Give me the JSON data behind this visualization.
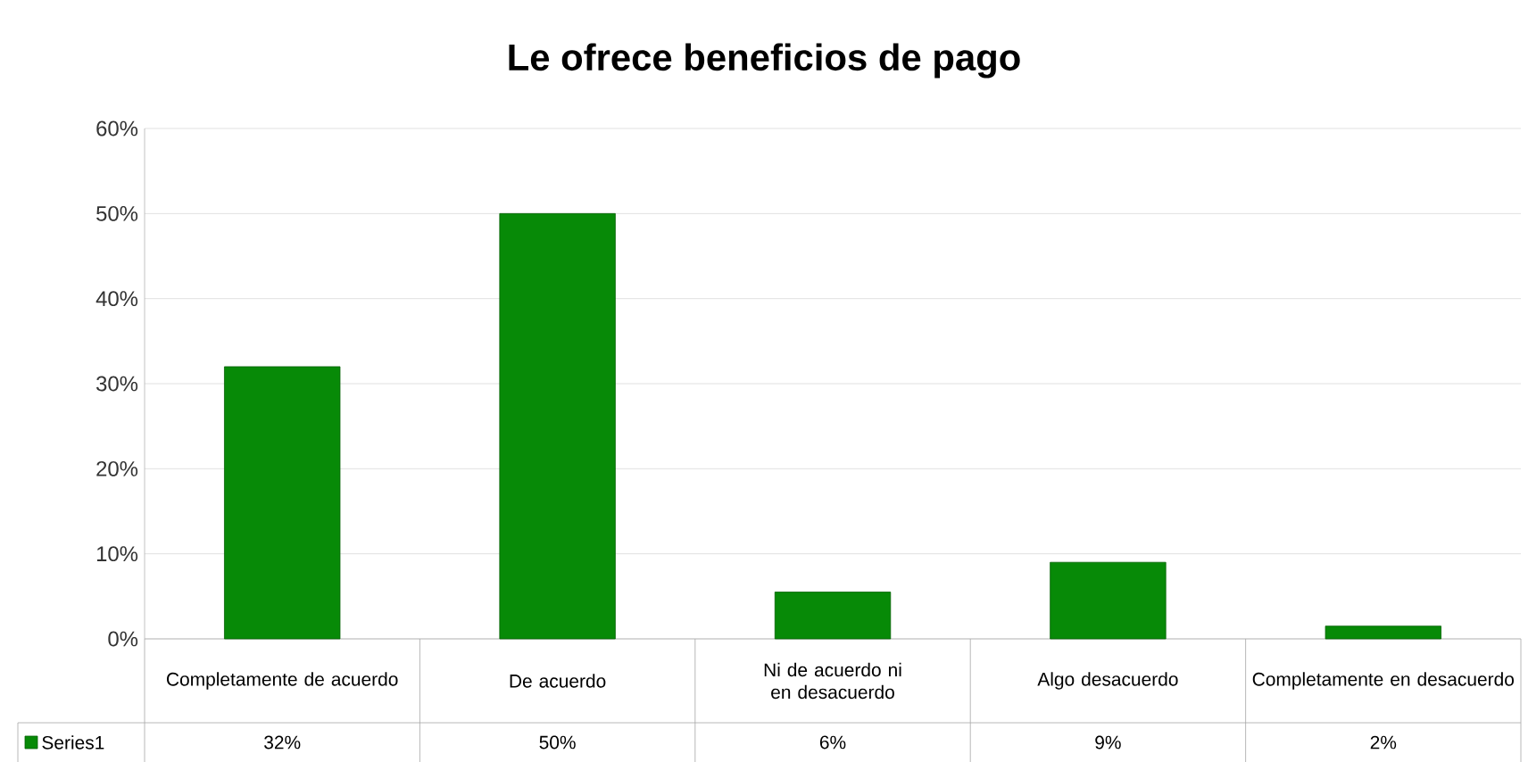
{
  "chart_data": {
    "type": "bar",
    "title": "Le ofrece beneficios de pago",
    "categories": [
      "Completamente de acuerdo",
      "De acuerdo",
      "Ni de acuerdo ni en desacuerdo",
      "Algo desacuerdo",
      "Completamente en desacuerdo"
    ],
    "series": [
      {
        "name": "Series1",
        "color": "#078a07",
        "values": [
          32,
          50,
          5.5,
          9,
          1.5
        ],
        "value_labels": [
          "32%",
          "50%",
          "6%",
          "9%",
          "2%"
        ]
      }
    ],
    "ylim": [
      0,
      60
    ],
    "yticks": [
      {
        "value": 0,
        "label": "0%"
      },
      {
        "value": 10,
        "label": "10%"
      },
      {
        "value": 20,
        "label": "20%"
      },
      {
        "value": 30,
        "label": "30%"
      },
      {
        "value": 40,
        "label": "40%"
      },
      {
        "value": 50,
        "label": "50%"
      },
      {
        "value": 60,
        "label": "60%"
      }
    ],
    "grid": "y"
  }
}
